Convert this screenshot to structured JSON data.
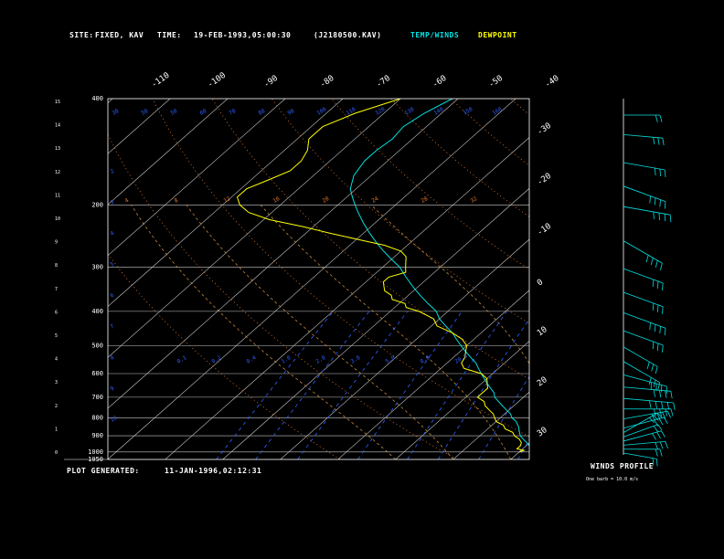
{
  "header": {
    "site_label": "SITE:",
    "site_value": "FIXED, KAV",
    "time_label": "TIME:",
    "time_value": "19-FEB-1993,05:00:30",
    "file_id": "(J2180500.KAV)",
    "legend_temp": "TEMP/WINDS",
    "legend_dew": "DEWPOINT"
  },
  "footer": {
    "plot_generated_label": "PLOT GENERATED:",
    "plot_generated_value": "11-JAN-1996,02:12:31"
  },
  "winds_panel": {
    "title": "WINDS PROFILE",
    "note": "One barb = 10.0 m/s"
  },
  "colors": {
    "background": "#000000",
    "frame": "#ffffff",
    "isobar": "#c8c8c8",
    "isotherm": "#c8c8c8",
    "temp_trace": "#00e0e0",
    "dew_trace": "#ffff00",
    "dry_adiabat": "#e07a30",
    "moist_adiabat": "#e09a40",
    "mixing_ratio": "#3060ff",
    "wind_barb": "#00e0e0",
    "legend_temp": "#00e0e0",
    "legend_dew": "#ffff00"
  },
  "chart_data": {
    "type": "line",
    "diagram": "skew-T log-P",
    "y_scale": "log",
    "pressure_labels": [
      "400",
      "200",
      "300",
      "400",
      "500",
      "600",
      "700",
      "800",
      "900",
      "1000",
      "1050"
    ],
    "altitude_labels": [
      "0",
      "1",
      "2",
      "3",
      "4",
      "5",
      "6",
      "7",
      "8",
      "9",
      "10",
      "11",
      "12",
      "13",
      "14",
      "15"
    ],
    "top_temperature_labels": [
      "-110",
      "-100",
      "-90",
      "-80",
      "-70",
      "-60",
      "-50",
      "-40"
    ],
    "right_temperature_labels": [
      "-30",
      "-20",
      "-10",
      "0",
      "10",
      "20",
      "30"
    ],
    "theta_labels_top": [
      "30",
      "50",
      "50",
      "60",
      "70",
      "80",
      "90",
      "100",
      "110",
      "120",
      "130",
      "140",
      "150",
      "160"
    ],
    "theta_labels_mid": [
      "2",
      "3",
      "4",
      "5",
      "6",
      "7",
      "8",
      "9",
      "10"
    ],
    "theta_labels_band": [
      "4",
      "8",
      "12",
      "16",
      "20",
      "24",
      "28",
      "32"
    ],
    "mixing_ratio_labels": [
      "0.1",
      "0.2",
      "0.4",
      "1.0",
      "2.0",
      "3.0",
      "5.0",
      "8.0",
      "20.0"
    ],
    "series": [
      {
        "pressure": [
          1000,
          990,
          970,
          950,
          925,
          900,
          875,
          850,
          820,
          800,
          780,
          760,
          740,
          720,
          700,
          680,
          660,
          640,
          620,
          600,
          580,
          560,
          540,
          520,
          500,
          480,
          460,
          440,
          420,
          400,
          380,
          360,
          340,
          320,
          300,
          285,
          270,
          255,
          240,
          225,
          210,
          200,
          190,
          180,
          165,
          150,
          140,
          130,
          120,
          110,
          100
        ],
        "temperature": [
          14,
          12,
          11,
          10,
          8.5,
          7,
          6,
          5,
          3.5,
          2,
          1,
          -0.5,
          -2,
          -3.5,
          -5,
          -6,
          -7.5,
          -9,
          -10.5,
          -12,
          -13.5,
          -15,
          -17,
          -19,
          -21,
          -23,
          -25,
          -27.5,
          -30,
          -32,
          -35,
          -38,
          -41,
          -44,
          -47,
          -50,
          -53,
          -56,
          -59,
          -62,
          -65,
          -67,
          -69,
          -71,
          -73,
          -74,
          -74,
          -73.5,
          -74,
          -73,
          -71
        ]
      },
      {
        "pressure": [
          1000,
          990,
          980,
          960,
          940,
          920,
          900,
          880,
          860,
          840,
          820,
          800,
          780,
          760,
          740,
          720,
          700,
          680,
          660,
          640,
          620,
          600,
          580,
          560,
          540,
          520,
          500,
          480,
          460,
          440,
          420,
          400,
          390,
          380,
          370,
          360,
          350,
          340,
          330,
          320,
          310,
          300,
          290,
          280,
          270,
          260,
          250,
          240,
          230,
          220,
          210,
          200,
          190,
          180,
          170,
          160,
          150,
          140,
          130,
          120,
          110,
          100
        ],
        "dewpoint": [
          10,
          10.5,
          9,
          9,
          8.5,
          7.5,
          6,
          5,
          3,
          2,
          0,
          -1,
          -2,
          -3.5,
          -5,
          -6,
          -8,
          -8,
          -8,
          -9,
          -10,
          -12,
          -16,
          -17.5,
          -18,
          -19,
          -20,
          -22,
          -25,
          -29,
          -31,
          -35,
          -38,
          -39,
          -42,
          -43,
          -45,
          -46,
          -47,
          -47,
          -45,
          -46,
          -47,
          -48,
          -50,
          -54,
          -60,
          -66,
          -72,
          -79,
          -84,
          -87,
          -89,
          -89,
          -87,
          -85,
          -85,
          -86,
          -88,
          -88,
          -85,
          -80
        ]
      }
    ],
    "winds": [
      {
        "pressure": 1000,
        "dir": 280,
        "spd": 15
      },
      {
        "pressure": 975,
        "dir": 270,
        "spd": 20
      },
      {
        "pressure": 950,
        "dir": 265,
        "spd": 30
      },
      {
        "pressure": 925,
        "dir": 255,
        "spd": 25
      },
      {
        "pressure": 900,
        "dir": 250,
        "spd": 20
      },
      {
        "pressure": 875,
        "dir": 240,
        "spd": 25
      },
      {
        "pressure": 850,
        "dir": 255,
        "spd": 30
      },
      {
        "pressure": 800,
        "dir": 260,
        "spd": 35
      },
      {
        "pressure": 750,
        "dir": 270,
        "spd": 40
      },
      {
        "pressure": 700,
        "dir": 275,
        "spd": 45
      },
      {
        "pressure": 650,
        "dir": 275,
        "spd": 40
      },
      {
        "pressure": 600,
        "dir": 285,
        "spd": 35
      },
      {
        "pressure": 550,
        "dir": 300,
        "spd": 30
      },
      {
        "pressure": 500,
        "dir": 300,
        "spd": 25
      },
      {
        "pressure": 450,
        "dir": 290,
        "spd": 30
      },
      {
        "pressure": 400,
        "dir": 290,
        "spd": 35
      },
      {
        "pressure": 350,
        "dir": 290,
        "spd": 30
      },
      {
        "pressure": 300,
        "dir": 290,
        "spd": 30
      },
      {
        "pressure": 250,
        "dir": 300,
        "spd": 35
      },
      {
        "pressure": 200,
        "dir": 280,
        "spd": 40
      },
      {
        "pressure": 175,
        "dir": 290,
        "spd": 35
      },
      {
        "pressure": 150,
        "dir": 280,
        "spd": 30
      },
      {
        "pressure": 125,
        "dir": 275,
        "spd": 25
      },
      {
        "pressure": 110,
        "dir": 270,
        "spd": 20
      }
    ]
  }
}
